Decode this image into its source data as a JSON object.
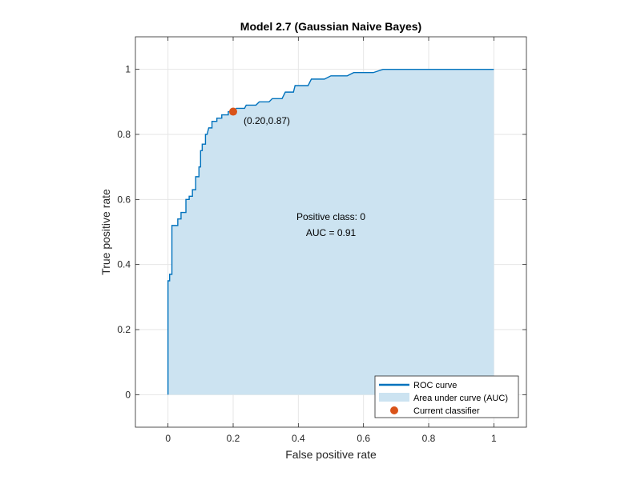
{
  "chart_data": {
    "type": "line",
    "title": "Model 2.7 (Gaussian Naive Bayes)",
    "xlabel": "False positive rate",
    "ylabel": "True positive rate",
    "xlim": [
      -0.1,
      1.1
    ],
    "ylim": [
      -0.1,
      1.1
    ],
    "xticks": [
      0,
      0.2,
      0.4,
      0.6,
      0.8,
      1
    ],
    "yticks": [
      0,
      0.2,
      0.4,
      0.6,
      0.8,
      1
    ],
    "xtick_labels": [
      "0",
      "0.2",
      "0.4",
      "0.6",
      "0.8",
      "1"
    ],
    "ytick_labels": [
      "0",
      "0.2",
      "0.4",
      "0.6",
      "0.8",
      "1"
    ],
    "grid": true,
    "legend_position": "bottom-right",
    "colors": {
      "roc_line": "#0072BD",
      "auc_fill": "#CCE3F1",
      "marker": "#D95319",
      "grid": "#E6E6E6",
      "axis": "#262626"
    },
    "series": [
      {
        "name": "ROC curve",
        "kind": "line",
        "points": [
          [
            0,
            0
          ],
          [
            0,
            0.35
          ],
          [
            0.005,
            0.35
          ],
          [
            0.005,
            0.37
          ],
          [
            0.012,
            0.37
          ],
          [
            0.012,
            0.52
          ],
          [
            0.03,
            0.52
          ],
          [
            0.03,
            0.54
          ],
          [
            0.04,
            0.54
          ],
          [
            0.04,
            0.56
          ],
          [
            0.055,
            0.56
          ],
          [
            0.055,
            0.6
          ],
          [
            0.065,
            0.6
          ],
          [
            0.065,
            0.61
          ],
          [
            0.075,
            0.61
          ],
          [
            0.075,
            0.63
          ],
          [
            0.085,
            0.63
          ],
          [
            0.085,
            0.67
          ],
          [
            0.095,
            0.67
          ],
          [
            0.095,
            0.7
          ],
          [
            0.1,
            0.7
          ],
          [
            0.1,
            0.75
          ],
          [
            0.105,
            0.75
          ],
          [
            0.105,
            0.77
          ],
          [
            0.115,
            0.77
          ],
          [
            0.115,
            0.8
          ],
          [
            0.12,
            0.8
          ],
          [
            0.125,
            0.82
          ],
          [
            0.135,
            0.82
          ],
          [
            0.135,
            0.84
          ],
          [
            0.15,
            0.84
          ],
          [
            0.15,
            0.85
          ],
          [
            0.165,
            0.85
          ],
          [
            0.165,
            0.86
          ],
          [
            0.185,
            0.86
          ],
          [
            0.185,
            0.87
          ],
          [
            0.2,
            0.87
          ],
          [
            0.21,
            0.88
          ],
          [
            0.235,
            0.88
          ],
          [
            0.24,
            0.89
          ],
          [
            0.27,
            0.89
          ],
          [
            0.28,
            0.9
          ],
          [
            0.31,
            0.9
          ],
          [
            0.32,
            0.91
          ],
          [
            0.35,
            0.91
          ],
          [
            0.36,
            0.93
          ],
          [
            0.385,
            0.93
          ],
          [
            0.39,
            0.95
          ],
          [
            0.43,
            0.95
          ],
          [
            0.44,
            0.97
          ],
          [
            0.48,
            0.97
          ],
          [
            0.5,
            0.98
          ],
          [
            0.55,
            0.98
          ],
          [
            0.57,
            0.99
          ],
          [
            0.63,
            0.99
          ],
          [
            0.66,
            1.0
          ],
          [
            1,
            1.0
          ]
        ]
      },
      {
        "name": "Area under curve (AUC)",
        "kind": "area"
      },
      {
        "name": "Current classifier",
        "kind": "marker",
        "point": [
          0.2,
          0.87
        ]
      }
    ],
    "annotations": {
      "point_label": "(0.20,0.87)",
      "positive_class": "Positive class: 0",
      "auc": "AUC = 0.91"
    }
  }
}
